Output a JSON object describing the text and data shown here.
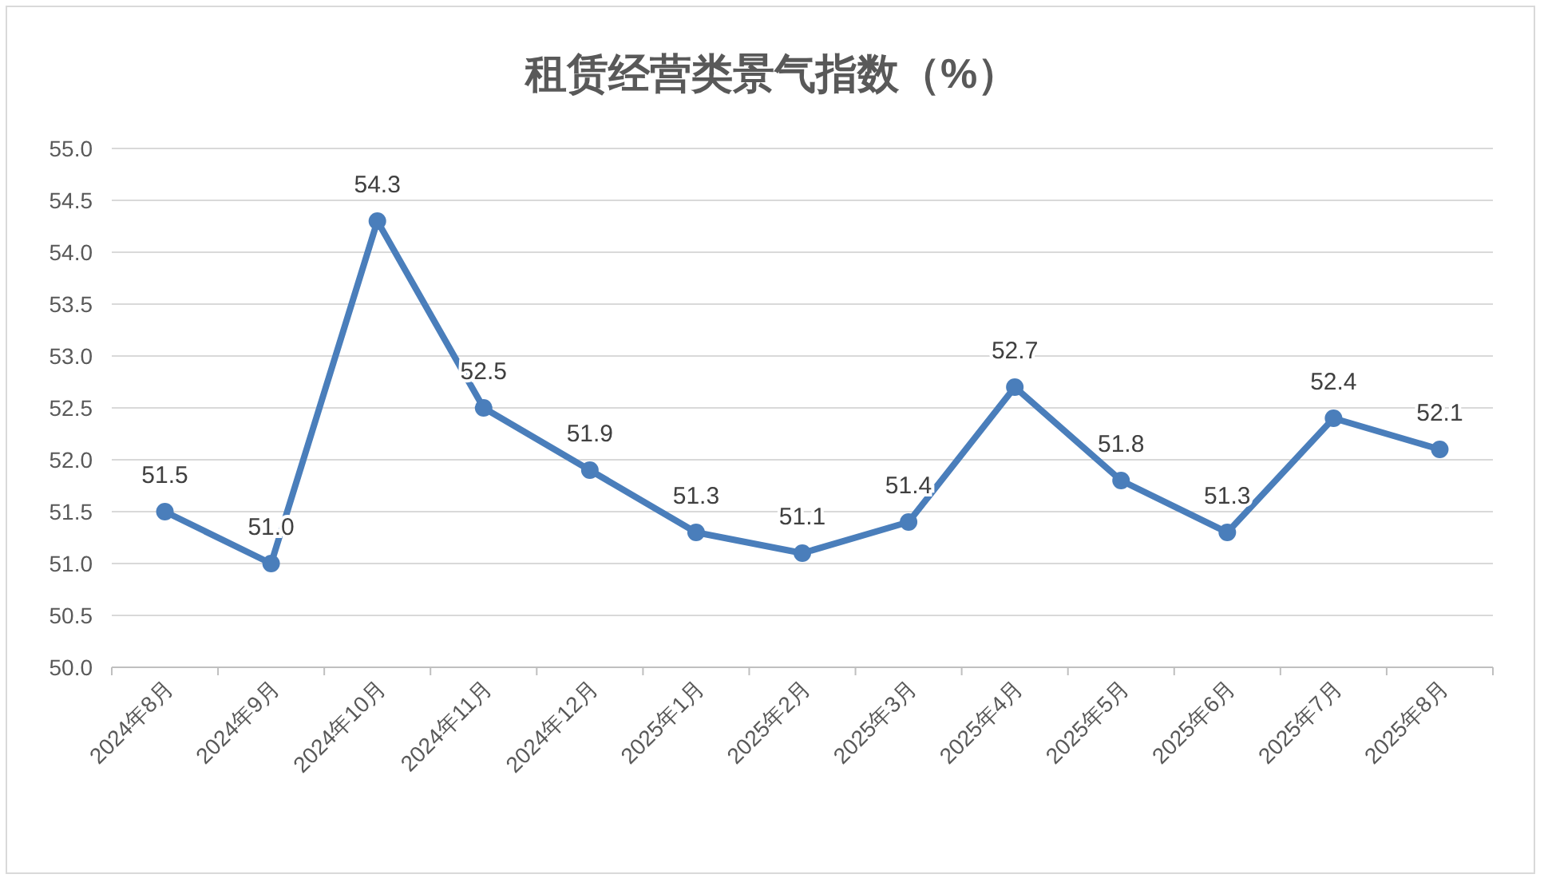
{
  "chart_data": {
    "type": "line",
    "title": "租赁经营类景气指数（%）",
    "categories": [
      "2024年8月",
      "2024年9月",
      "2024年10月",
      "2024年11月",
      "2024年12月",
      "2025年1月",
      "2025年2月",
      "2025年3月",
      "2025年4月",
      "2025年5月",
      "2025年6月",
      "2025年7月",
      "2025年8月"
    ],
    "series": [
      {
        "color": "#4a7ebb",
        "values": [
          51.5,
          51.0,
          54.3,
          52.5,
          51.9,
          51.3,
          51.1,
          51.4,
          52.7,
          51.8,
          51.3,
          52.4,
          52.1
        ],
        "value_labels": [
          "51.5",
          "51.0",
          "54.3",
          "52.5",
          "51.9",
          "51.3",
          "51.1",
          "51.4",
          "52.7",
          "51.8",
          "51.3",
          "52.4",
          "52.1"
        ]
      }
    ],
    "ylim": [
      50,
      55
    ],
    "yticks": [
      {
        "value": 50,
        "label": "50.0"
      },
      {
        "value": 50.5,
        "label": "50.5"
      },
      {
        "value": 51,
        "label": "51.0"
      },
      {
        "value": 51.5,
        "label": "51.5"
      },
      {
        "value": 52,
        "label": "52.0"
      },
      {
        "value": 52.5,
        "label": "52.5"
      },
      {
        "value": 53,
        "label": "53.0"
      },
      {
        "value": 53.5,
        "label": "53.5"
      },
      {
        "value": 54,
        "label": "54.0"
      },
      {
        "value": 54.5,
        "label": "54.5"
      },
      {
        "value": 55,
        "label": "55.0"
      }
    ],
    "grid": "y",
    "marker": "circle",
    "line_style": "solid"
  }
}
